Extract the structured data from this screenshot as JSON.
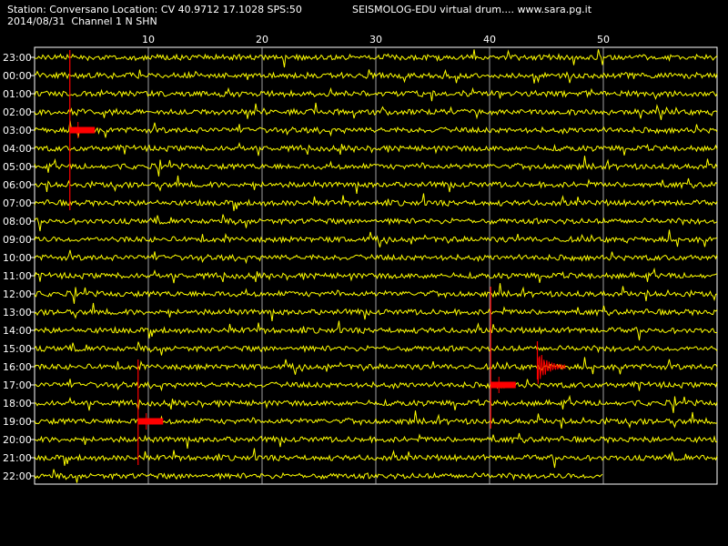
{
  "header": {
    "station_line": "Station: Conversano Location: CV 40.9712 17.1028 SPS:50",
    "site_line": "SEISMOLOG-EDU virtual drum.... www.sara.pg.it",
    "date_line": "2014/08/31  Channel 1 N SHN"
  },
  "chart_data": {
    "type": "line",
    "title": "",
    "xlabel": "",
    "ylabel": "",
    "xlim": [
      0,
      60
    ],
    "x_ticks": [
      10,
      20,
      30,
      40,
      50
    ],
    "rows": [
      "23:00",
      "00:00",
      "01:00",
      "02:00",
      "03:00",
      "04:00",
      "05:00",
      "06:00",
      "07:00",
      "08:00",
      "09:00",
      "10:00",
      "11:00",
      "12:00",
      "13:00",
      "14:00",
      "15:00",
      "16:00",
      "17:00",
      "18:00",
      "19:00",
      "20:00",
      "21:00",
      "22:00"
    ],
    "last_row_end_minute": 50,
    "trace_color": "#ffff00",
    "event_color": "#ff0000",
    "grid": true,
    "events": [
      {
        "row": "03:00",
        "minute": 3.1,
        "pulse_rows": [
          "23:00",
          "07:00"
        ],
        "marker_minutes": 2.2,
        "burst": false
      },
      {
        "row": "19:00",
        "minute": 9.1,
        "pulse_rows": [
          "16:00",
          "21:00"
        ],
        "marker_minutes": 2.2,
        "burst": false
      },
      {
        "row": "17:00",
        "minute": 40.1,
        "pulse_rows": [
          "12:00",
          "19:00"
        ],
        "marker_minutes": 2.2,
        "burst": false
      },
      {
        "row": "16:00",
        "minute": 44.2,
        "pulse_rows": [
          "15:00",
          "16:00"
        ],
        "marker_minutes": 2.5,
        "burst": true
      }
    ]
  }
}
